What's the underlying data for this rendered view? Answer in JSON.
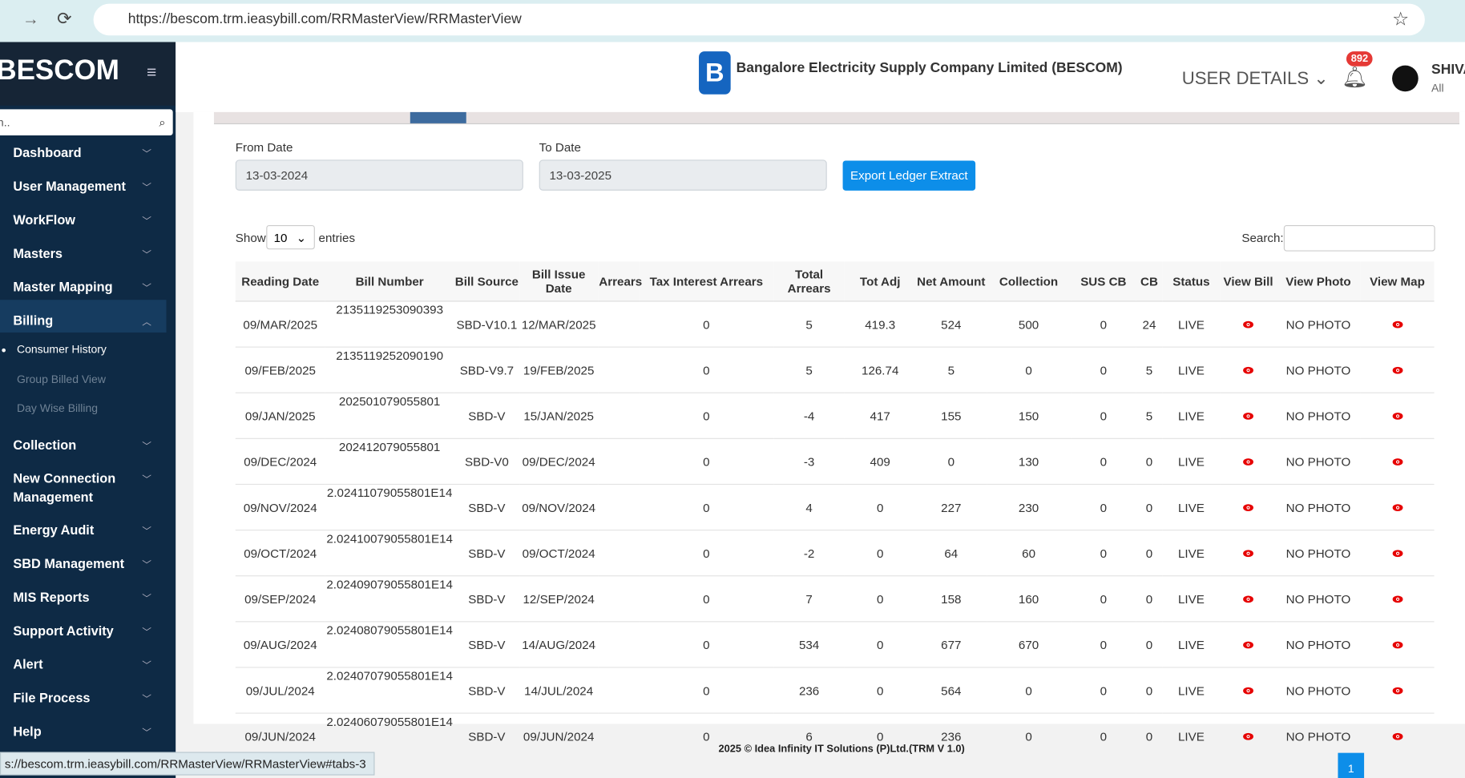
{
  "browser": {
    "url": "https://bescom.trm.ieasybill.com/RRMasterView/RRMasterView"
  },
  "sidebar": {
    "brand": "BESCOM",
    "search_placeholder": "Search..",
    "items": [
      "Dashboard",
      "User Management",
      "WorkFlow",
      "Masters",
      "Master Mapping",
      "Billing"
    ],
    "billing_sub": [
      "Consumer History",
      "Group Billed View",
      "Day Wise Billing"
    ],
    "items_after": [
      "Collection",
      "New Connection Management",
      "Energy Audit",
      "SBD Management",
      "MIS Reports",
      "Support Activity",
      "Alert",
      "File Process",
      "Help"
    ]
  },
  "header": {
    "company": "Bangalore Electricity Supply Company Limited (BESCOM)",
    "user_details": "USER DETAILS",
    "notifications": "892",
    "user_name": "SHIVA",
    "user_role": "All"
  },
  "filters": {
    "from_label": "From Date",
    "from_value": "13-03-2024",
    "to_label": "To Date",
    "to_value": "13-03-2025",
    "export_button": "Export Ledger Extract"
  },
  "table": {
    "show": "Show",
    "page_size": "10",
    "entries": "entries",
    "search_label": "Search:",
    "headers": [
      "Reading Date",
      "Bill Number",
      "Bill Source",
      "Bill Issue Date",
      "Arrears",
      "Tax Interest Arrears",
      "Total Arrears",
      "Tot Adj",
      "Net Amount",
      "Collection",
      "SUS CB",
      "CB",
      "Status",
      "View Bill",
      "View Photo",
      "View Map"
    ],
    "rows": [
      [
        "09/MAR/2025",
        "2135119253090393",
        "SBD-V10.1",
        "12/MAR/2025",
        "0",
        "5",
        "419.3",
        "524",
        "500",
        "0",
        "24",
        "LIVE",
        "NO PHOTO"
      ],
      [
        "09/FEB/2025",
        "2135119252090190",
        "SBD-V9.7",
        "19/FEB/2025",
        "0",
        "5",
        "126.74",
        "5",
        "0",
        "0",
        "5",
        "LIVE",
        "NO PHOTO"
      ],
      [
        "09/JAN/2025",
        "202501079055801",
        "SBD-V",
        "15/JAN/2025",
        "0",
        "-4",
        "417",
        "155",
        "150",
        "0",
        "5",
        "LIVE",
        "NO PHOTO"
      ],
      [
        "09/DEC/2024",
        "202412079055801",
        "SBD-V0",
        "09/DEC/2024",
        "0",
        "-3",
        "409",
        "0",
        "130",
        "0",
        "0",
        "LIVE",
        "NO PHOTO"
      ],
      [
        "09/NOV/2024",
        "2.02411079055801E14",
        "SBD-V",
        "09/NOV/2024",
        "0",
        "4",
        "0",
        "227",
        "230",
        "0",
        "0",
        "LIVE",
        "NO PHOTO"
      ],
      [
        "09/OCT/2024",
        "2.02410079055801E14",
        "SBD-V",
        "09/OCT/2024",
        "0",
        "-2",
        "0",
        "64",
        "60",
        "0",
        "0",
        "LIVE",
        "NO PHOTO"
      ],
      [
        "09/SEP/2024",
        "2.02409079055801E14",
        "SBD-V",
        "12/SEP/2024",
        "0",
        "7",
        "0",
        "158",
        "160",
        "0",
        "0",
        "LIVE",
        "NO PHOTO"
      ],
      [
        "09/AUG/2024",
        "2.02408079055801E14",
        "SBD-V",
        "14/AUG/2024",
        "0",
        "534",
        "0",
        "677",
        "670",
        "0",
        "0",
        "LIVE",
        "NO PHOTO"
      ],
      [
        "09/JUL/2024",
        "2.02407079055801E14",
        "SBD-V",
        "14/JUL/2024",
        "0",
        "236",
        "0",
        "564",
        "0",
        "0",
        "0",
        "LIVE",
        "NO PHOTO"
      ],
      [
        "09/JUN/2024",
        "2.02406079055801E14",
        "SBD-V",
        "09/JUN/2024",
        "0",
        "6",
        "0",
        "236",
        "0",
        "0",
        "0",
        "LIVE",
        "NO PHOTO"
      ]
    ]
  },
  "footer": {
    "text": "2025 © Idea Infinity IT Solutions (P)Ltd.(TRM V 1.0)",
    "page": "1"
  },
  "status_url": "s://bescom.trm.ieasybill.com/RRMasterView/RRMasterView#tabs-3"
}
